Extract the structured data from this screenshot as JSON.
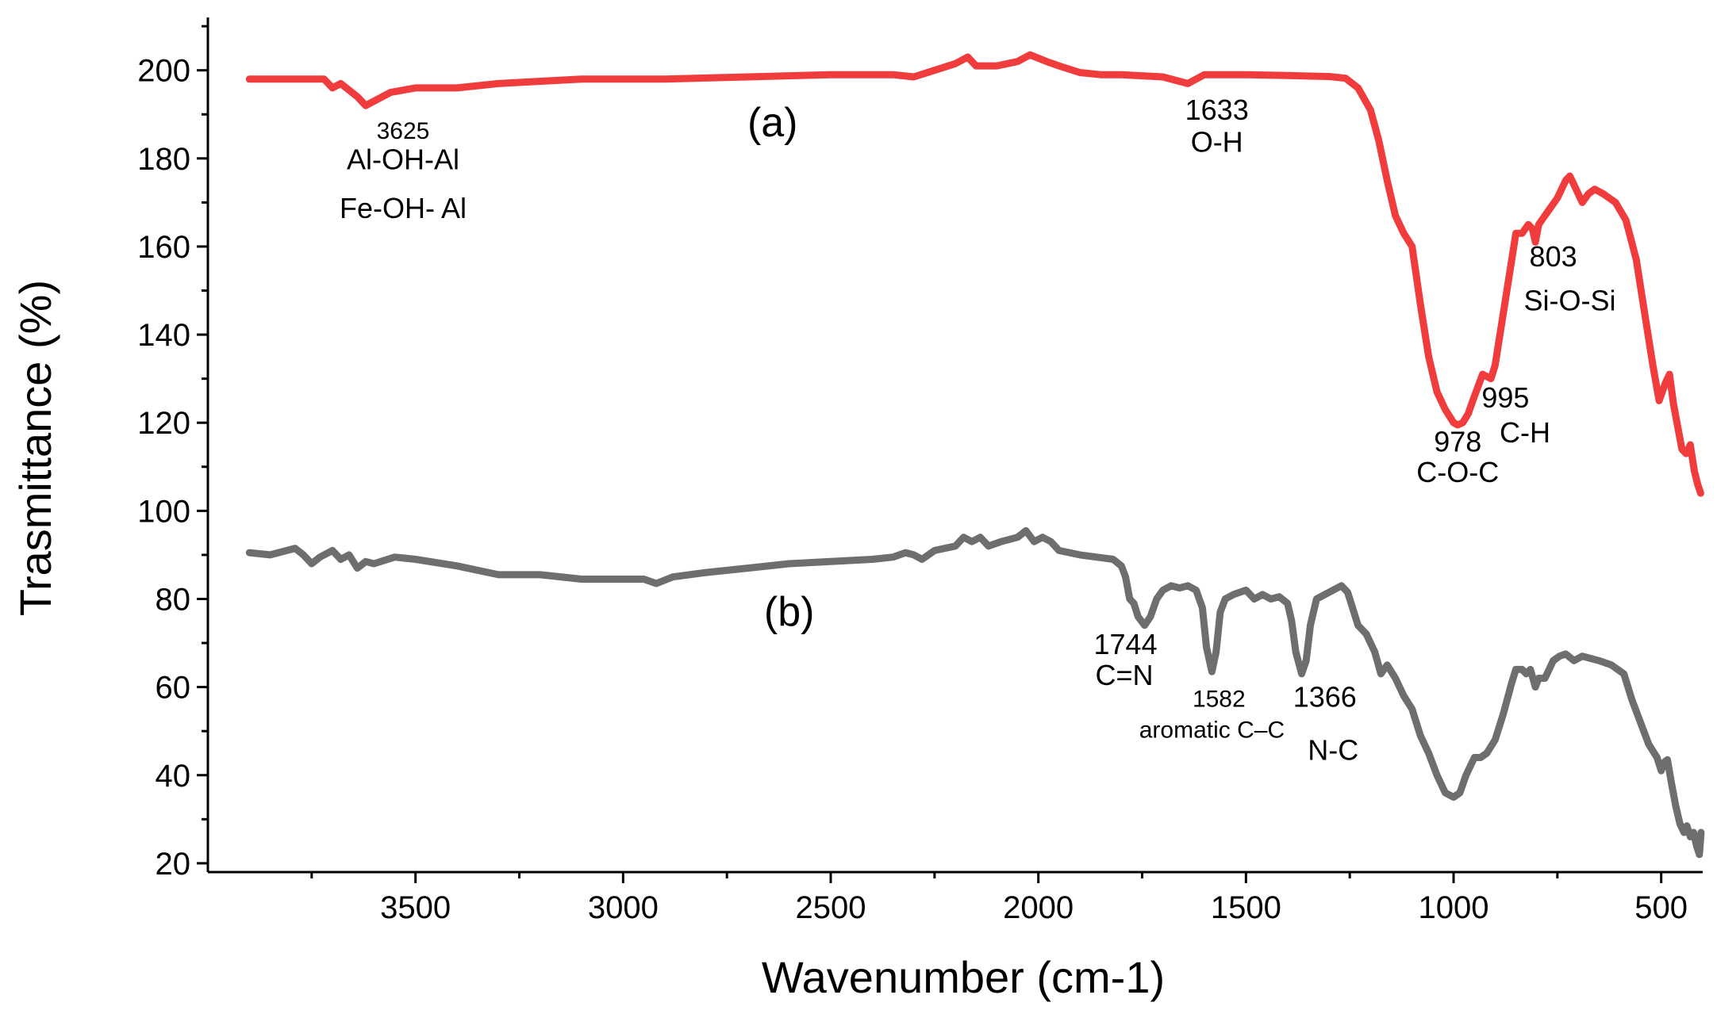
{
  "chart_data": {
    "type": "line",
    "title": "",
    "xlabel": "Wavenumber (cm-1)",
    "ylabel": "Trasmittance (%)",
    "xlim": [
      4000,
      400
    ],
    "ylim": [
      18,
      212
    ],
    "x_ticks": [
      3500,
      3000,
      2500,
      2000,
      1500,
      1000,
      500
    ],
    "y_ticks": [
      20,
      40,
      60,
      80,
      100,
      120,
      140,
      160,
      180,
      200
    ],
    "grid": false,
    "colors": {
      "a": "#f03c3c",
      "b": "#6e6e6e",
      "axis": "#000000"
    },
    "series": [
      {
        "name": "(a)",
        "color": "#f03c3c",
        "points": [
          [
            3900,
            198
          ],
          [
            3800,
            198
          ],
          [
            3720,
            198
          ],
          [
            3700,
            196
          ],
          [
            3680,
            197
          ],
          [
            3640,
            194
          ],
          [
            3620,
            192
          ],
          [
            3600,
            193
          ],
          [
            3560,
            195
          ],
          [
            3500,
            196
          ],
          [
            3400,
            196
          ],
          [
            3300,
            197
          ],
          [
            3100,
            198
          ],
          [
            2900,
            198
          ],
          [
            2700,
            198.5
          ],
          [
            2500,
            199
          ],
          [
            2350,
            199
          ],
          [
            2300,
            198.5
          ],
          [
            2250,
            200
          ],
          [
            2200,
            201.5
          ],
          [
            2170,
            203
          ],
          [
            2150,
            201
          ],
          [
            2100,
            201
          ],
          [
            2050,
            202
          ],
          [
            2020,
            203.5
          ],
          [
            1980,
            202
          ],
          [
            1950,
            201
          ],
          [
            1900,
            199.5
          ],
          [
            1850,
            199
          ],
          [
            1800,
            199
          ],
          [
            1700,
            198.5
          ],
          [
            1660,
            197.5
          ],
          [
            1640,
            197
          ],
          [
            1620,
            198
          ],
          [
            1600,
            199
          ],
          [
            1500,
            199
          ],
          [
            1400,
            198.8
          ],
          [
            1300,
            198.6
          ],
          [
            1260,
            198.2
          ],
          [
            1230,
            196
          ],
          [
            1200,
            191
          ],
          [
            1180,
            184
          ],
          [
            1160,
            175
          ],
          [
            1140,
            167
          ],
          [
            1120,
            163
          ],
          [
            1100,
            160
          ],
          [
            1080,
            147
          ],
          [
            1060,
            135
          ],
          [
            1040,
            127
          ],
          [
            1020,
            123
          ],
          [
            1000,
            120
          ],
          [
            990,
            119.5
          ],
          [
            978,
            120
          ],
          [
            965,
            122
          ],
          [
            950,
            126
          ],
          [
            930,
            131
          ],
          [
            910,
            130
          ],
          [
            900,
            133
          ],
          [
            880,
            145
          ],
          [
            860,
            157
          ],
          [
            850,
            163
          ],
          [
            835,
            163
          ],
          [
            820,
            165
          ],
          [
            810,
            164
          ],
          [
            803,
            161
          ],
          [
            795,
            165
          ],
          [
            780,
            167
          ],
          [
            765,
            169
          ],
          [
            750,
            171
          ],
          [
            740,
            173
          ],
          [
            730,
            175
          ],
          [
            720,
            176
          ],
          [
            705,
            173
          ],
          [
            690,
            170
          ],
          [
            675,
            172
          ],
          [
            660,
            173
          ],
          [
            640,
            172
          ],
          [
            610,
            170
          ],
          [
            585,
            166
          ],
          [
            560,
            157
          ],
          [
            540,
            145
          ],
          [
            520,
            133
          ],
          [
            505,
            125
          ],
          [
            490,
            129
          ],
          [
            480,
            131
          ],
          [
            470,
            124
          ],
          [
            460,
            119
          ],
          [
            450,
            114
          ],
          [
            440,
            113
          ],
          [
            430,
            115
          ],
          [
            420,
            109
          ],
          [
            412,
            106
          ],
          [
            405,
            104
          ]
        ]
      },
      {
        "name": "(b)",
        "color": "#6e6e6e",
        "points": [
          [
            3900,
            90.5
          ],
          [
            3850,
            90
          ],
          [
            3810,
            91
          ],
          [
            3790,
            91.5
          ],
          [
            3770,
            90
          ],
          [
            3750,
            88
          ],
          [
            3730,
            89.5
          ],
          [
            3700,
            91
          ],
          [
            3680,
            89
          ],
          [
            3660,
            90
          ],
          [
            3640,
            87
          ],
          [
            3620,
            88.5
          ],
          [
            3600,
            88
          ],
          [
            3550,
            89.5
          ],
          [
            3500,
            89
          ],
          [
            3400,
            87.5
          ],
          [
            3350,
            86.5
          ],
          [
            3300,
            85.5
          ],
          [
            3200,
            85.5
          ],
          [
            3100,
            84.5
          ],
          [
            3000,
            84.5
          ],
          [
            2950,
            84.5
          ],
          [
            2920,
            83.5
          ],
          [
            2880,
            85
          ],
          [
            2800,
            86
          ],
          [
            2700,
            87
          ],
          [
            2600,
            88
          ],
          [
            2500,
            88.5
          ],
          [
            2400,
            89
          ],
          [
            2350,
            89.5
          ],
          [
            2320,
            90.5
          ],
          [
            2300,
            90
          ],
          [
            2280,
            89
          ],
          [
            2250,
            91
          ],
          [
            2200,
            92
          ],
          [
            2180,
            94
          ],
          [
            2160,
            93
          ],
          [
            2140,
            94
          ],
          [
            2120,
            92
          ],
          [
            2090,
            93
          ],
          [
            2050,
            94
          ],
          [
            2030,
            95.5
          ],
          [
            2010,
            93
          ],
          [
            1990,
            94
          ],
          [
            1970,
            93
          ],
          [
            1950,
            91
          ],
          [
            1900,
            90
          ],
          [
            1860,
            89.5
          ],
          [
            1820,
            89
          ],
          [
            1800,
            87.5
          ],
          [
            1790,
            85
          ],
          [
            1780,
            80
          ],
          [
            1770,
            79
          ],
          [
            1760,
            76
          ],
          [
            1744,
            74
          ],
          [
            1730,
            76
          ],
          [
            1715,
            80
          ],
          [
            1700,
            82
          ],
          [
            1680,
            83
          ],
          [
            1660,
            82.5
          ],
          [
            1640,
            83
          ],
          [
            1620,
            82
          ],
          [
            1605,
            78
          ],
          [
            1595,
            69
          ],
          [
            1582,
            63.5
          ],
          [
            1572,
            68
          ],
          [
            1562,
            77
          ],
          [
            1550,
            80
          ],
          [
            1530,
            81
          ],
          [
            1500,
            82
          ],
          [
            1480,
            80
          ],
          [
            1460,
            81
          ],
          [
            1440,
            80
          ],
          [
            1420,
            80.5
          ],
          [
            1400,
            79
          ],
          [
            1390,
            75
          ],
          [
            1380,
            68
          ],
          [
            1366,
            63
          ],
          [
            1355,
            66
          ],
          [
            1345,
            74
          ],
          [
            1330,
            80
          ],
          [
            1310,
            81
          ],
          [
            1290,
            82
          ],
          [
            1270,
            83
          ],
          [
            1255,
            81.5
          ],
          [
            1240,
            77
          ],
          [
            1230,
            74
          ],
          [
            1210,
            72
          ],
          [
            1190,
            68
          ],
          [
            1175,
            63
          ],
          [
            1160,
            65
          ],
          [
            1140,
            62
          ],
          [
            1120,
            58
          ],
          [
            1100,
            55
          ],
          [
            1080,
            49
          ],
          [
            1060,
            45
          ],
          [
            1040,
            40
          ],
          [
            1020,
            36
          ],
          [
            1000,
            35
          ],
          [
            985,
            36
          ],
          [
            970,
            40
          ],
          [
            950,
            44
          ],
          [
            935,
            44
          ],
          [
            920,
            45
          ],
          [
            900,
            48
          ],
          [
            880,
            54
          ],
          [
            860,
            61
          ],
          [
            850,
            64
          ],
          [
            835,
            64
          ],
          [
            825,
            63
          ],
          [
            815,
            64
          ],
          [
            803,
            60
          ],
          [
            795,
            62
          ],
          [
            780,
            62
          ],
          [
            770,
            64
          ],
          [
            760,
            66
          ],
          [
            745,
            67
          ],
          [
            730,
            67.5
          ],
          [
            710,
            66
          ],
          [
            690,
            67
          ],
          [
            670,
            66.5
          ],
          [
            650,
            66
          ],
          [
            620,
            65
          ],
          [
            590,
            63
          ],
          [
            570,
            57
          ],
          [
            550,
            52
          ],
          [
            530,
            47
          ],
          [
            510,
            44
          ],
          [
            500,
            41
          ],
          [
            492,
            43
          ],
          [
            485,
            43.5
          ],
          [
            475,
            38
          ],
          [
            465,
            33
          ],
          [
            455,
            29
          ],
          [
            445,
            27
          ],
          [
            438,
            28.5
          ],
          [
            430,
            26
          ],
          [
            422,
            27
          ],
          [
            415,
            24
          ],
          [
            408,
            22
          ],
          [
            404,
            27
          ]
        ]
      }
    ],
    "series_labels": [
      {
        "text": "(a)",
        "x": 2640,
        "y": 185
      },
      {
        "text": "(b)",
        "x": 2600,
        "y": 74
      }
    ],
    "annotations": [
      {
        "id": "ann-3625",
        "text": "3625",
        "x": 3530,
        "y": 184.5,
        "size": "sm"
      },
      {
        "id": "ann-al-oh-al",
        "text": "Al-OH-Al",
        "x": 3530,
        "y": 177.5,
        "size": "md"
      },
      {
        "id": "ann-fe-oh-al",
        "text": "Fe-OH- Al",
        "x": 3530,
        "y": 166.5,
        "size": "md"
      },
      {
        "id": "ann-1633",
        "text": "1633",
        "x": 1570,
        "y": 188.8,
        "size": "md"
      },
      {
        "id": "ann-o-h",
        "text": "O-H",
        "x": 1570,
        "y": 181.5,
        "size": "md"
      },
      {
        "id": "ann-803",
        "text": "803",
        "x": 760,
        "y": 155.5,
        "size": "md"
      },
      {
        "id": "ann-si-o-si",
        "text": "Si-O-Si",
        "x": 720,
        "y": 145.5,
        "size": "md"
      },
      {
        "id": "ann-995",
        "text": "995",
        "x": 875,
        "y": 123.5,
        "size": "md"
      },
      {
        "id": "ann-c-h",
        "text": "C-H",
        "x": 828,
        "y": 115.5,
        "size": "md"
      },
      {
        "id": "ann-978",
        "text": "978",
        "x": 990,
        "y": 113.5,
        "size": "md"
      },
      {
        "id": "ann-c-o-c",
        "text": "C-O-C",
        "x": 990,
        "y": 106.5,
        "size": "md"
      },
      {
        "id": "ann-1744",
        "text": "1744",
        "x": 1790,
        "y": 67.5,
        "size": "md"
      },
      {
        "id": "ann-c-n",
        "text": "C=N",
        "x": 1793,
        "y": 60.5,
        "size": "md"
      },
      {
        "id": "ann-1582",
        "text": "1582",
        "x": 1565,
        "y": 55.5,
        "size": "sm"
      },
      {
        "id": "ann-aromatic",
        "text": "aromatic C–C",
        "x": 1582,
        "y": 48.5,
        "size": "sm"
      },
      {
        "id": "ann-1366",
        "text": "1366",
        "x": 1310,
        "y": 55.5,
        "size": "md"
      },
      {
        "id": "ann-n-c",
        "text": "N-C",
        "x": 1290,
        "y": 43.5,
        "size": "md"
      }
    ]
  }
}
